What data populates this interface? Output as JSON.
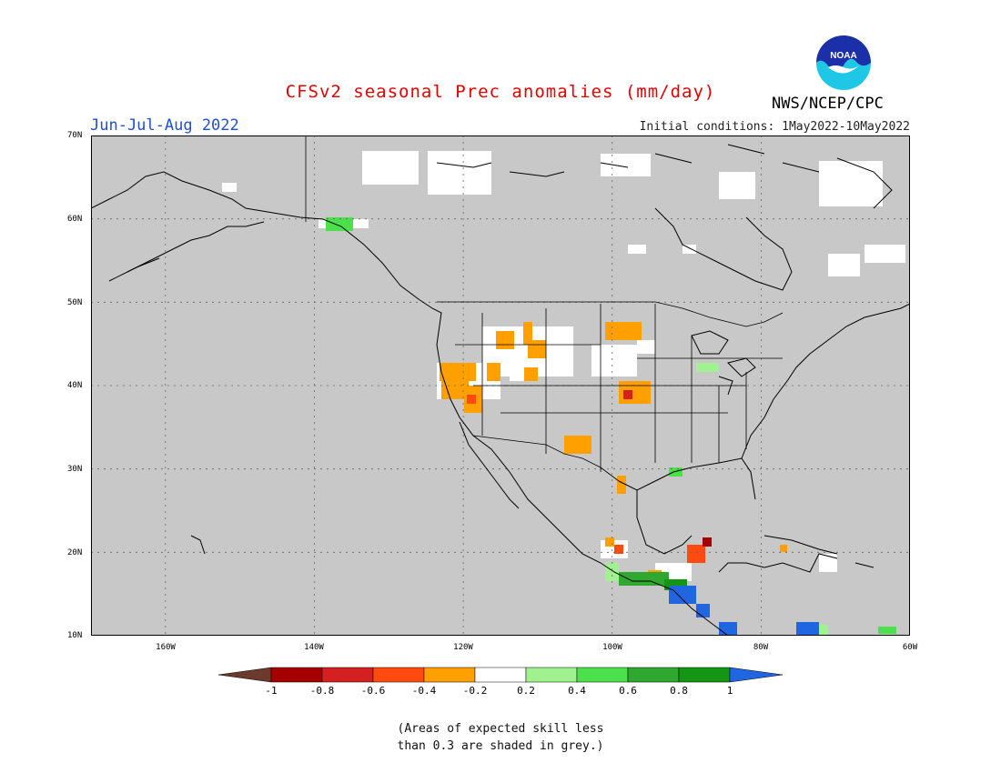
{
  "title": "CFSv2 seasonal Prec anomalies (mm/day)",
  "period": "Jun-Jul-Aug 2022",
  "initial_conditions": "Initial conditions: 1May2022-10May2022",
  "agency": "NWS/NCEP/CPC",
  "logo_text": "NOAA",
  "lat_labels": [
    "70N",
    "60N",
    "50N",
    "40N",
    "30N",
    "20N",
    "10N"
  ],
  "lon_labels": [
    "160W",
    "140W",
    "120W",
    "100W",
    "80W",
    "60W"
  ],
  "colorbar": {
    "labels": [
      "-1",
      "-0.8",
      "-0.6",
      "-0.4",
      "-0.2",
      "0.2",
      "0.4",
      "0.6",
      "0.8",
      "1"
    ],
    "colors": [
      "#6b3a2a",
      "#a50000",
      "#d42020",
      "#ff4a10",
      "#ff9f00",
      "#ffffff",
      "#9ff28f",
      "#4ce04c",
      "#2ea82e",
      "#149614",
      "#1f66e0"
    ]
  },
  "note": [
    "(Areas of expected skill less",
    "than 0.3 are shaded in grey.)"
  ],
  "map_colors": {
    "grey": "#c8c8c8",
    "white": "#ffffff",
    "orange": "#ff9f00",
    "red_orange": "#ff4a10",
    "red": "#d42020",
    "dark_red": "#a50000",
    "light_green": "#9ff28f",
    "green": "#4ce04c",
    "mid_green": "#2ea82e",
    "dark_green": "#149614",
    "blue": "#1f66e0"
  }
}
